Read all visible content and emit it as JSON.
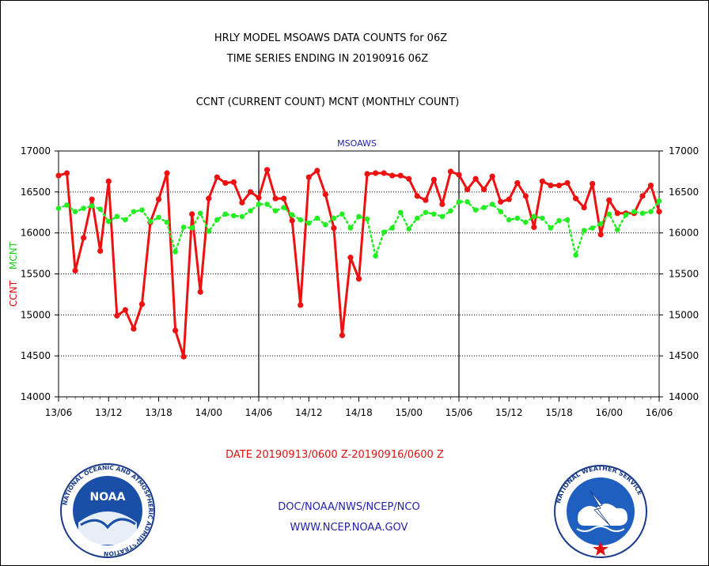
{
  "header": {
    "title_line1": "HRLY MODEL MSOAWS DATA COUNTS for 06Z",
    "title_line2": "TIME SERIES ENDING IN 20190916 06Z",
    "subtitle": "CCNT (CURRENT COUNT) MCNT (MONTHLY COUNT)"
  },
  "footer": {
    "date_range": "DATE 20190913/0600 Z-20190916/0600 Z",
    "org": "DOC/NOAA/NWS/NCEP/NCO",
    "url": "WWW.NCEP.NOAA.GOV"
  },
  "logos": {
    "noaa_text": "NOAA",
    "noaa_ring": "NATIONAL OCEANIC AND ATMOSPHERIC ADMINISTRATION",
    "noaa_ring_bottom": "U.S. DEPARTMENT OF COMMERCE",
    "nws_ring": "NATIONAL WEATHER SERVICE"
  },
  "colors": {
    "ccnt": "#ee1111",
    "mcnt": "#22ee22",
    "text_blue": "#2222aa",
    "text_red": "#dd1111",
    "grid": "#000000"
  },
  "chart_data": {
    "type": "line",
    "title": "MSOAWS",
    "ylabel_ccnt": "CCNT",
    "ylabel_mcnt": "MCNT",
    "ylim": [
      14000,
      17000
    ],
    "yticks": [
      14000,
      14500,
      15000,
      15500,
      16000,
      16500,
      17000
    ],
    "ytick_labels": [
      "14000",
      "14500",
      "15000",
      "15500",
      "16000",
      "16500",
      "17000"
    ],
    "xlim": [
      0,
      72
    ],
    "xticks": [
      0,
      6,
      12,
      18,
      24,
      30,
      36,
      42,
      48,
      54,
      60,
      66,
      72
    ],
    "xtick_labels": [
      "13/06",
      "13/12",
      "13/18",
      "14/00",
      "14/06",
      "14/12",
      "14/18",
      "15/00",
      "15/06",
      "15/12",
      "15/18",
      "16/00",
      "16/06"
    ],
    "day_boundaries": [
      24,
      48
    ],
    "grid": true,
    "series": [
      {
        "name": "CCNT",
        "x": [
          0,
          1,
          2,
          3,
          4,
          5,
          6,
          7,
          8,
          9,
          10,
          11,
          12,
          13,
          14,
          15,
          16,
          17,
          18,
          19,
          20,
          21,
          22,
          23,
          24,
          25,
          26,
          27,
          28,
          29,
          30,
          31,
          32,
          33,
          34,
          35,
          36,
          37,
          38,
          39,
          40,
          41,
          42,
          43,
          44,
          45,
          46,
          47,
          48,
          49,
          50,
          51,
          52,
          53,
          54,
          55,
          56,
          57,
          58,
          59,
          60,
          61,
          62,
          63,
          64,
          65,
          66,
          67,
          68,
          69,
          70,
          71,
          72
        ],
        "values": [
          16700,
          16730,
          15540,
          15940,
          16410,
          15780,
          16630,
          14990,
          15060,
          14830,
          15130,
          16130,
          16410,
          16730,
          14810,
          14490,
          16230,
          15280,
          16420,
          16680,
          16610,
          16620,
          16370,
          16500,
          16430,
          16770,
          16420,
          16420,
          16150,
          15120,
          16680,
          16760,
          16470,
          16060,
          14750,
          15700,
          15440,
          16720,
          16730,
          16730,
          16700,
          16700,
          16660,
          16450,
          16400,
          16650,
          16350,
          16750,
          16710,
          16530,
          16660,
          16530,
          16690,
          16380,
          16410,
          16610,
          16450,
          16070,
          16630,
          16580,
          16580,
          16610,
          16420,
          16310,
          16600,
          15980,
          16400,
          16240,
          16240,
          16240,
          16450,
          16580,
          16260
        ]
      },
      {
        "name": "MCNT",
        "x": [
          0,
          1,
          2,
          3,
          4,
          5,
          6,
          7,
          8,
          9,
          10,
          11,
          12,
          13,
          14,
          15,
          16,
          17,
          18,
          19,
          20,
          21,
          22,
          23,
          24,
          25,
          26,
          27,
          28,
          29,
          30,
          31,
          32,
          33,
          34,
          35,
          36,
          37,
          38,
          39,
          40,
          41,
          42,
          43,
          44,
          45,
          46,
          47,
          48,
          49,
          50,
          51,
          52,
          53,
          54,
          55,
          56,
          57,
          58,
          59,
          60,
          61,
          62,
          63,
          64,
          65,
          66,
          67,
          68,
          69,
          70,
          71,
          72
        ],
        "values": [
          16300,
          16340,
          16260,
          16300,
          16330,
          16290,
          16140,
          16200,
          16160,
          16260,
          16280,
          16140,
          16190,
          16130,
          15770,
          16070,
          16060,
          16240,
          16020,
          16160,
          16230,
          16210,
          16200,
          16270,
          16350,
          16350,
          16270,
          16310,
          16220,
          16160,
          16120,
          16180,
          16100,
          16180,
          16230,
          16060,
          16200,
          16170,
          15720,
          16010,
          16060,
          16250,
          16050,
          16180,
          16250,
          16230,
          16200,
          16270,
          16380,
          16380,
          16280,
          16310,
          16350,
          16260,
          16160,
          16180,
          16130,
          16200,
          16180,
          16060,
          16150,
          16160,
          15730,
          16030,
          16060,
          16110,
          16230,
          16040,
          16220,
          16260,
          16240,
          16260,
          16390
        ]
      }
    ]
  }
}
